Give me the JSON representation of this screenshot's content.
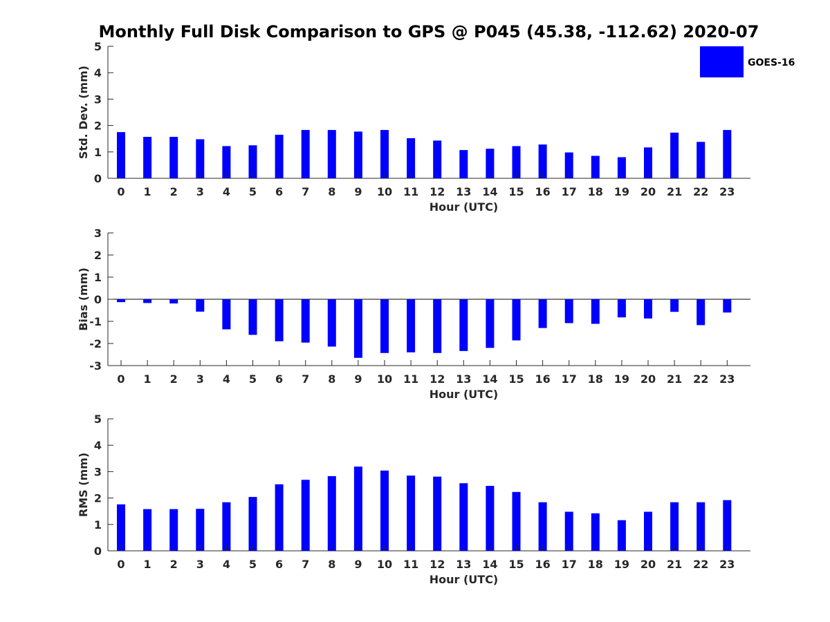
{
  "figure": {
    "title": "Monthly Full Disk Comparison to GPS @ P045 (45.38, -112.62) 2020-07"
  },
  "legend": {
    "label": "GOES-16",
    "color": "#0000ff"
  },
  "chart_data": [
    {
      "type": "bar",
      "name": "std-dev",
      "title": "Monthly Full Disk Comparison to GPS @ P045 (45.38, -112.62) 2020-07",
      "xlabel": "Hour (UTC)",
      "ylabel": "Std. Dev. (mm)",
      "ylim": [
        0,
        5
      ],
      "yticks": [
        0,
        1,
        2,
        3,
        4,
        5
      ],
      "categories": [
        "0",
        "1",
        "2",
        "3",
        "4",
        "5",
        "6",
        "7",
        "8",
        "9",
        "10",
        "11",
        "12",
        "13",
        "14",
        "15",
        "16",
        "17",
        "18",
        "19",
        "20",
        "21",
        "22",
        "23"
      ],
      "series": [
        {
          "name": "GOES-16",
          "color": "#0000ff",
          "values": [
            1.75,
            1.57,
            1.57,
            1.48,
            1.22,
            1.25,
            1.65,
            1.83,
            1.83,
            1.77,
            1.83,
            1.52,
            1.43,
            1.07,
            1.12,
            1.22,
            1.28,
            0.98,
            0.85,
            0.8,
            1.17,
            1.73,
            1.38,
            1.83
          ]
        }
      ]
    },
    {
      "type": "bar",
      "name": "bias",
      "xlabel": "Hour (UTC)",
      "ylabel": "Bias (mm)",
      "ylim": [
        -3,
        3
      ],
      "yticks": [
        -3,
        -2,
        -1,
        0,
        1,
        2,
        3
      ],
      "categories": [
        "0",
        "1",
        "2",
        "3",
        "4",
        "5",
        "6",
        "7",
        "8",
        "9",
        "10",
        "11",
        "12",
        "13",
        "14",
        "15",
        "16",
        "17",
        "18",
        "19",
        "20",
        "21",
        "22",
        "23"
      ],
      "series": [
        {
          "name": "GOES-16",
          "color": "#0000ff",
          "values": [
            -0.13,
            -0.17,
            -0.19,
            -0.56,
            -1.36,
            -1.61,
            -1.9,
            -1.96,
            -2.14,
            -2.65,
            -2.43,
            -2.4,
            -2.43,
            -2.34,
            -2.2,
            -1.86,
            -1.3,
            -1.08,
            -1.11,
            -0.82,
            -0.87,
            -0.57,
            -1.17,
            -0.6
          ]
        }
      ]
    },
    {
      "type": "bar",
      "name": "rms",
      "xlabel": "Hour (UTC)",
      "ylabel": "RMS (mm)",
      "ylim": [
        0,
        5
      ],
      "yticks": [
        0,
        1,
        2,
        3,
        4,
        5
      ],
      "categories": [
        "0",
        "1",
        "2",
        "3",
        "4",
        "5",
        "6",
        "7",
        "8",
        "9",
        "10",
        "11",
        "12",
        "13",
        "14",
        "15",
        "16",
        "17",
        "18",
        "19",
        "20",
        "21",
        "22",
        "23"
      ],
      "series": [
        {
          "name": "GOES-16",
          "color": "#0000ff",
          "values": [
            1.76,
            1.58,
            1.58,
            1.59,
            1.84,
            2.04,
            2.52,
            2.69,
            2.83,
            3.19,
            3.04,
            2.85,
            2.81,
            2.56,
            2.46,
            2.23,
            1.84,
            1.48,
            1.42,
            1.16,
            1.48,
            1.84,
            1.84,
            1.92
          ]
        }
      ]
    }
  ]
}
